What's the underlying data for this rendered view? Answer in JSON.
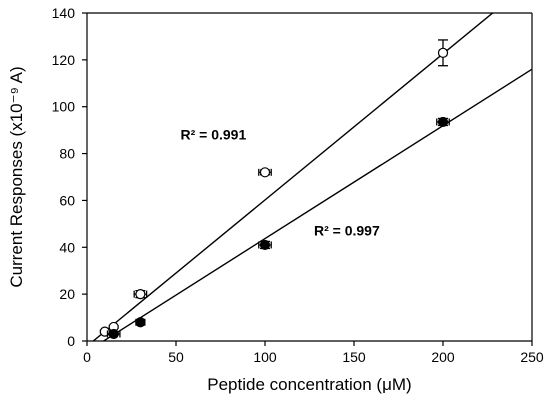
{
  "chart_data": {
    "type": "scatter",
    "xlabel": "Peptide concentration (μM)",
    "ylabel": "Current Responses (x10⁻⁹ A)",
    "xlim": [
      0,
      250
    ],
    "ylim": [
      0,
      140
    ],
    "x_ticks": [
      "0",
      "50",
      "100",
      "150",
      "200",
      "250"
    ],
    "y_ticks": [
      "0",
      "20",
      "40",
      "60",
      "80",
      "100",
      "120",
      "140"
    ],
    "grid": false,
    "legend": "none",
    "series": [
      {
        "marker": "open-circle",
        "points": [
          {
            "x": 10,
            "y": 4,
            "xerr": 0,
            "yerr": 0.5
          },
          {
            "x": 15,
            "y": 6,
            "xerr": 0,
            "yerr": 0.5
          },
          {
            "x": 30,
            "y": 20,
            "xerr": 3.5,
            "yerr": 1.5
          },
          {
            "x": 100,
            "y": 72,
            "xerr": 3.5,
            "yerr": 1
          },
          {
            "x": 200,
            "y": 123,
            "xerr": 2,
            "yerr": 5.5
          }
        ],
        "fit": {
          "x": [
            0,
            250
          ],
          "y": [
            -2.2,
            153.8
          ]
        },
        "r2_label": "R² = 0.991"
      },
      {
        "marker": "filled-circle",
        "points": [
          {
            "x": 15,
            "y": 3,
            "xerr": 3.5,
            "yerr": 0.5
          },
          {
            "x": 30,
            "y": 8,
            "xerr": 2.5,
            "yerr": 0.5
          },
          {
            "x": 100,
            "y": 41,
            "xerr": 3.5,
            "yerr": 1.5
          },
          {
            "x": 200,
            "y": 93.5,
            "xerr": 3.5,
            "yerr": 1.5
          }
        ],
        "fit": {
          "x": [
            0,
            250
          ],
          "y": [
            -4.5,
            116
          ]
        },
        "r2_label": "R² = 0.997"
      }
    ],
    "annotations": [
      {
        "text": "R² = 0.991",
        "x": 71,
        "y": 86
      },
      {
        "text": "R² = 0.997",
        "x": 146,
        "y": 45
      }
    ],
    "colors": {
      "marker_stroke": "#000000",
      "open_fill": "#ffffff",
      "filled_fill": "#000000"
    }
  }
}
